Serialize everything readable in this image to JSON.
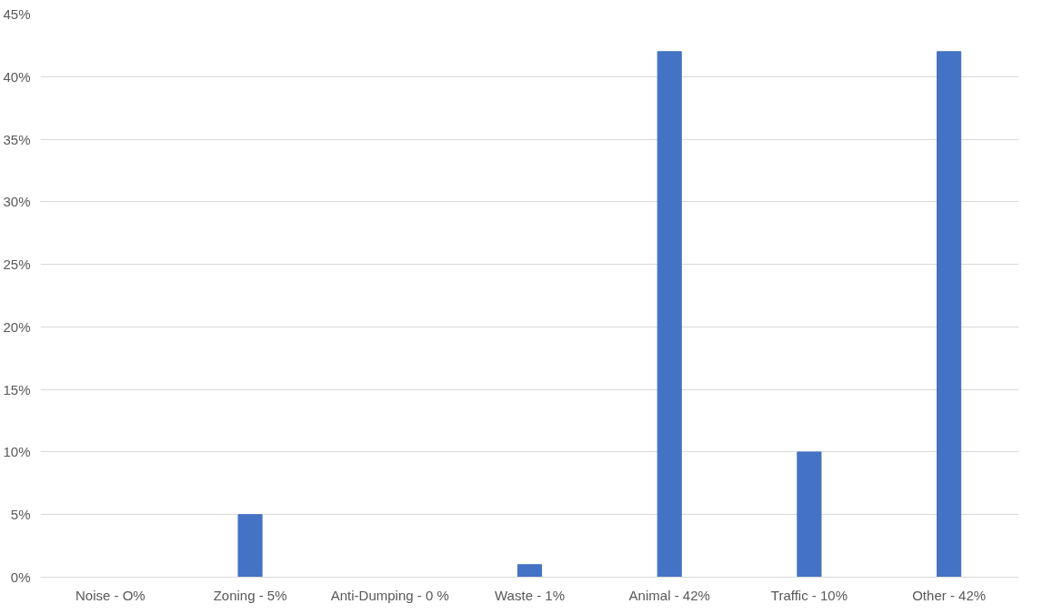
{
  "chart_data": {
    "type": "bar",
    "categories": [
      "Noise - O%",
      "Zoning - 5%",
      "Anti-Dumping - 0 %",
      "Waste - 1%",
      "Animal - 42%",
      "Traffic - 10%",
      "Other - 42%"
    ],
    "values": [
      0,
      5,
      0,
      1,
      42,
      10,
      42
    ],
    "color": "#4472c4",
    "ylim": [
      0,
      45
    ],
    "yticks": [
      {
        "value": 0,
        "label": "0%"
      },
      {
        "value": 5,
        "label": "5%"
      },
      {
        "value": 10,
        "label": "10%"
      },
      {
        "value": 15,
        "label": "15%"
      },
      {
        "value": 20,
        "label": "20%"
      },
      {
        "value": 25,
        "label": "25%"
      },
      {
        "value": 30,
        "label": "30%"
      },
      {
        "value": 35,
        "label": "35%"
      },
      {
        "value": 40,
        "label": "40%"
      },
      {
        "value": 45,
        "label": "45%"
      }
    ],
    "grid": "y"
  }
}
